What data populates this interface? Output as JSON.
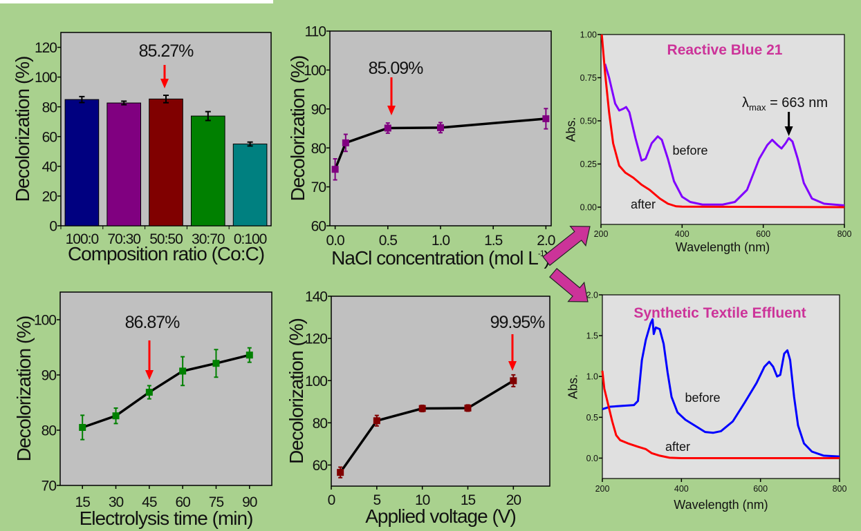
{
  "colors": {
    "background": "#a9d18e",
    "plot_bg": "#c0c0c0",
    "spectrum_bg": "#e0e0e0",
    "annotation_arrow": "#ff0000",
    "flow_arrow": "#cc3399",
    "title": "#cc3399"
  },
  "chart_data": [
    {
      "type": "bar",
      "categories": [
        "100:0",
        "70:30",
        "50:50",
        "30:70",
        "0:100"
      ],
      "values": [
        84.9,
        82.6,
        85.27,
        73.8,
        55.0
      ],
      "errors": [
        2.0,
        1.2,
        2.5,
        3.0,
        1.3
      ],
      "bar_colors": [
        "#000080",
        "#800080",
        "#800000",
        "#008000",
        "#008080"
      ],
      "xlabel": "Composition ratio (Co:C)",
      "ylabel": "Decolorization (%)",
      "ylim": [
        0,
        130
      ],
      "yticks": [
        0,
        20,
        40,
        60,
        80,
        100,
        120
      ],
      "annotation": {
        "text": "85.27%",
        "x": "50:50"
      }
    },
    {
      "type": "line",
      "x": [
        0.0,
        0.1,
        0.5,
        1.0,
        2.0
      ],
      "values": [
        74.5,
        81.3,
        85.09,
        85.2,
        87.5
      ],
      "errors": [
        2.7,
        2.2,
        1.3,
        1.3,
        2.6
      ],
      "marker_color": "#800080",
      "xlabel": "NaCl concentration (mol L",
      "xlabel_sup": "-1",
      "xlabel_end": ")",
      "ylabel": "Decolorization (%)",
      "xlim": [
        -0.05,
        2.05
      ],
      "ylim": [
        60,
        110
      ],
      "xticks": [
        "0.0",
        "0.5",
        "1.0",
        "1.5",
        "2.0"
      ],
      "yticks": [
        60,
        70,
        80,
        90,
        100,
        110
      ],
      "annotation": {
        "text": "85.09%",
        "x": 0.5
      }
    },
    {
      "type": "line",
      "title": "Reactive Blue 21",
      "xlabel": "Wavelength (nm)",
      "ylabel": "Abs.",
      "xlim": [
        200,
        800
      ],
      "ylim": [
        -0.1,
        1.0
      ],
      "xticks": [
        200,
        400,
        600,
        800
      ],
      "yticks": [
        "0.00",
        "0.25",
        "0.50",
        "0.75",
        "1.00"
      ],
      "series": [
        {
          "name": "before",
          "color": "#8000ff",
          "points": [
            [
              210,
              0.83
            ],
            [
              220,
              0.75
            ],
            [
              235,
              0.6
            ],
            [
              245,
              0.56
            ],
            [
              255,
              0.57
            ],
            [
              262,
              0.58
            ],
            [
              270,
              0.55
            ],
            [
              285,
              0.4
            ],
            [
              300,
              0.27
            ],
            [
              310,
              0.28
            ],
            [
              325,
              0.37
            ],
            [
              340,
              0.41
            ],
            [
              350,
              0.39
            ],
            [
              365,
              0.28
            ],
            [
              380,
              0.15
            ],
            [
              400,
              0.06
            ],
            [
              420,
              0.03
            ],
            [
              450,
              0.015
            ],
            [
              500,
              0.015
            ],
            [
              530,
              0.03
            ],
            [
              560,
              0.1
            ],
            [
              590,
              0.28
            ],
            [
              610,
              0.36
            ],
            [
              622,
              0.39
            ],
            [
              635,
              0.36
            ],
            [
              645,
              0.34
            ],
            [
              655,
              0.37
            ],
            [
              663,
              0.4
            ],
            [
              672,
              0.38
            ],
            [
              685,
              0.28
            ],
            [
              700,
              0.14
            ],
            [
              720,
              0.05
            ],
            [
              750,
              0.02
            ],
            [
              800,
              0.01
            ]
          ]
        },
        {
          "name": "after",
          "color": "#ff0000",
          "points": [
            [
              202,
              1.0
            ],
            [
              210,
              0.78
            ],
            [
              220,
              0.55
            ],
            [
              230,
              0.37
            ],
            [
              245,
              0.24
            ],
            [
              260,
              0.2
            ],
            [
              280,
              0.17
            ],
            [
              300,
              0.13
            ],
            [
              320,
              0.1
            ],
            [
              330,
              0.08
            ],
            [
              345,
              0.05
            ],
            [
              365,
              0.02
            ],
            [
              385,
              0.005
            ],
            [
              400,
              0.003
            ],
            [
              800,
              0.0
            ]
          ]
        }
      ],
      "annotation": {
        "prefix": "λ",
        "sub": "max",
        "text": " = 663 nm",
        "x": 663
      }
    },
    {
      "type": "line",
      "x": [
        15,
        30,
        45,
        60,
        75,
        90
      ],
      "values": [
        80.5,
        82.6,
        86.87,
        90.7,
        92.1,
        93.6
      ],
      "errors": [
        2.2,
        1.4,
        1.2,
        2.6,
        2.5,
        1.3
      ],
      "marker_color": "#008000",
      "xlabel": "Electrolysis time (min)",
      "ylabel": "Decolorization (%)",
      "xlim": [
        5,
        100
      ],
      "ylim": [
        70,
        105
      ],
      "xticks": [
        "15",
        "30",
        "45",
        "60",
        "75",
        "90"
      ],
      "yticks": [
        70,
        80,
        90,
        100
      ],
      "annotation": {
        "text": "86.87%",
        "x": 45
      }
    },
    {
      "type": "line",
      "x": [
        1,
        5,
        10,
        15,
        20
      ],
      "values": [
        56.5,
        81.0,
        86.8,
        87.0,
        99.95
      ],
      "errors": [
        2.5,
        2.5,
        1.5,
        1.5,
        2.8
      ],
      "marker_color": "#800000",
      "xlabel": "Applied voltage (V)",
      "ylabel": "Decolorization (%)",
      "xlim": [
        0,
        24
      ],
      "ylim": [
        50,
        140
      ],
      "xticks": [
        "0",
        "5",
        "10",
        "15",
        "20"
      ],
      "yticks": [
        60,
        80,
        100,
        120,
        140
      ],
      "annotation": {
        "text": "99.95%",
        "x": 20
      }
    },
    {
      "type": "line",
      "title": "Synthetic Textile Effluent",
      "xlabel": "Wavelength (nm)",
      "ylabel": "Abs.",
      "xlim": [
        200,
        800
      ],
      "ylim": [
        -0.25,
        2.0
      ],
      "xticks": [
        200,
        400,
        600,
        800
      ],
      "yticks": [
        "0.0",
        "0.5",
        "1.0",
        "1.5",
        "2.0"
      ],
      "series": [
        {
          "name": "before",
          "color": "#0000ff",
          "points": [
            [
              200,
              0.6
            ],
            [
              220,
              0.63
            ],
            [
              280,
              0.65
            ],
            [
              290,
              0.7
            ],
            [
              295,
              0.95
            ],
            [
              300,
              1.2
            ],
            [
              310,
              1.45
            ],
            [
              322,
              1.65
            ],
            [
              327,
              1.7
            ],
            [
              330,
              1.52
            ],
            [
              335,
              1.6
            ],
            [
              345,
              1.58
            ],
            [
              355,
              1.4
            ],
            [
              365,
              1.05
            ],
            [
              375,
              0.75
            ],
            [
              390,
              0.56
            ],
            [
              410,
              0.47
            ],
            [
              440,
              0.38
            ],
            [
              460,
              0.32
            ],
            [
              480,
              0.31
            ],
            [
              500,
              0.33
            ],
            [
              530,
              0.45
            ],
            [
              560,
              0.68
            ],
            [
              590,
              0.92
            ],
            [
              610,
              1.12
            ],
            [
              622,
              1.18
            ],
            [
              632,
              1.12
            ],
            [
              642,
              1.0
            ],
            [
              650,
              1.02
            ],
            [
              660,
              1.28
            ],
            [
              668,
              1.32
            ],
            [
              675,
              1.2
            ],
            [
              685,
              0.75
            ],
            [
              695,
              0.4
            ],
            [
              710,
              0.18
            ],
            [
              730,
              0.08
            ],
            [
              760,
              0.03
            ],
            [
              800,
              0.02
            ]
          ]
        },
        {
          "name": "after",
          "color": "#ff0000",
          "points": [
            [
              200,
              1.07
            ],
            [
              205,
              0.85
            ],
            [
              215,
              0.65
            ],
            [
              225,
              0.45
            ],
            [
              235,
              0.28
            ],
            [
              245,
              0.22
            ],
            [
              265,
              0.18
            ],
            [
              290,
              0.14
            ],
            [
              310,
              0.11
            ],
            [
              325,
              0.06
            ],
            [
              345,
              0.03
            ],
            [
              370,
              0.005
            ],
            [
              400,
              0.0
            ],
            [
              800,
              0.0
            ]
          ]
        }
      ]
    }
  ]
}
